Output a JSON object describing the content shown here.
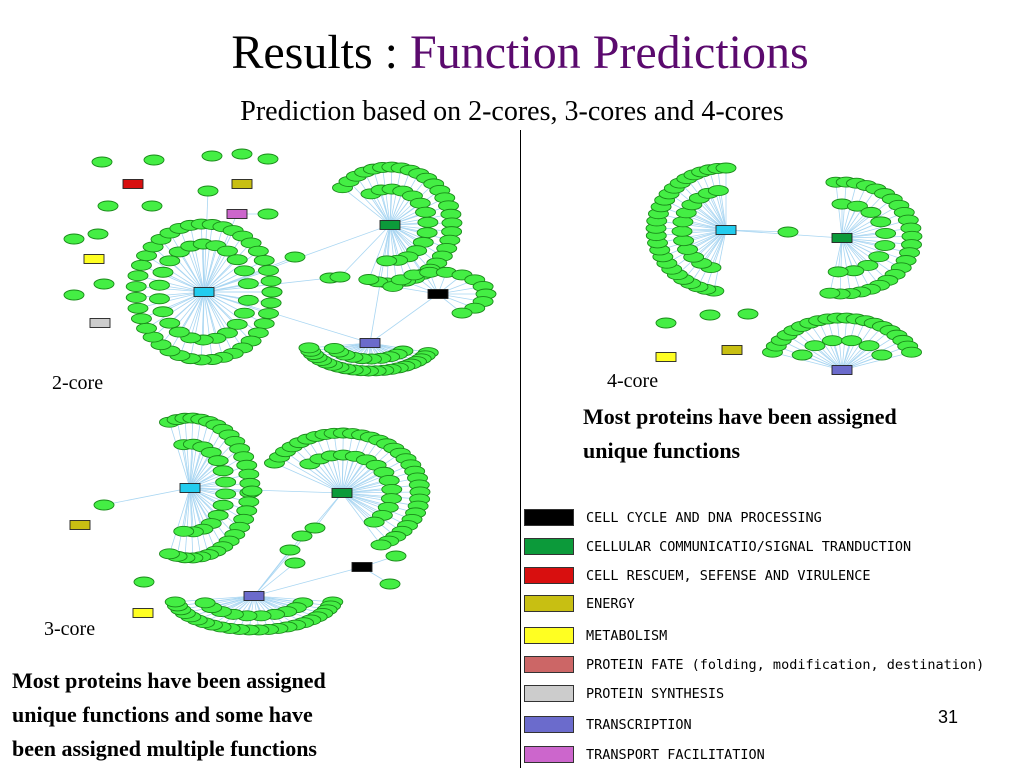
{
  "title": {
    "main": "Results :",
    "accent": "Function Predictions"
  },
  "subtitle": "Prediction based on 2-cores, 3-cores and 4-cores",
  "panels": {
    "core2": {
      "label": "2-core"
    },
    "core3": {
      "label": "3-core",
      "caption": "Most proteins have been assigned\nunique functions and some have\nbeen assigned multiple functions"
    },
    "core4": {
      "label": "4-core",
      "caption": "Most proteins have been assigned\nunique functions"
    }
  },
  "legend": [
    {
      "label": "CELL CYCLE AND DNA PROCESSING",
      "color": "#000000"
    },
    {
      "label": "CELLULAR COMMUNICATIO/SIGNAL TRANDUCTION",
      "color": "#0c9a3a"
    },
    {
      "label": "CELL RESCUEM, SEFENSE AND VIRULENCE",
      "color": "#d80f0f"
    },
    {
      "label": "ENERGY",
      "color": "#c8bf12"
    },
    {
      "label": "METABOLISM",
      "color": "#ffff22"
    },
    {
      "label": "PROTEIN FATE (folding, modification, destination)",
      "color": "#cc6666"
    },
    {
      "label": "PROTEIN SYNTHESIS",
      "color": "#cccccc"
    },
    {
      "label": "TRANSCRIPTION",
      "color": "#6b6bcc"
    },
    {
      "label": "TRANSPORT FACILITATION",
      "color": "#cc66cc"
    }
  ],
  "page_number": "31"
}
